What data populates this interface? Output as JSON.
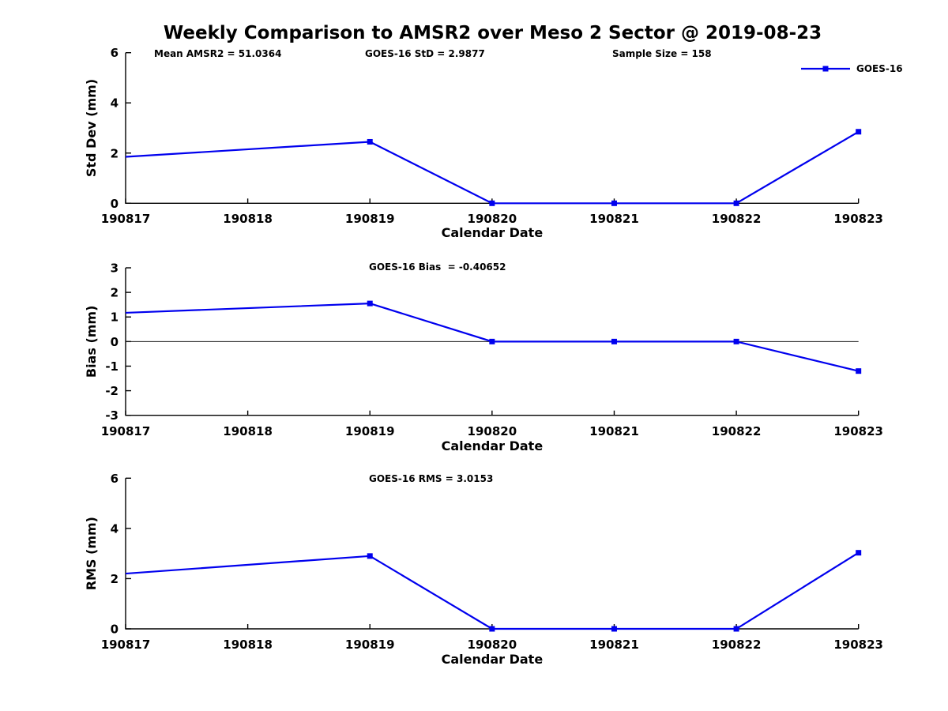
{
  "title": "Weekly Comparison to AMSR2 over Meso 2 Sector @ 2019-08-23",
  "header_annotations": {
    "mean_amsr2": "Mean AMSR2 = 51.0364",
    "goes16_std": "GOES-16 StD = 2.9877",
    "sample_size": "Sample Size = 158"
  },
  "legend": {
    "label": "GOES-16",
    "line_color": "#0000ee",
    "marker": "filled-square"
  },
  "colors": {
    "series_blue": "#0000ee",
    "axis_black": "#000000",
    "zero_line": "#1a1a1a"
  },
  "chart_data": [
    {
      "type": "line",
      "name": "std-dev-panel",
      "ylabel": "Std Dev (mm)",
      "xlabel": "Calendar Date",
      "ylim": [
        0,
        6
      ],
      "yticks": [
        0,
        2,
        4,
        6
      ],
      "categories": [
        "190817",
        "190818",
        "190819",
        "190820",
        "190821",
        "190822",
        "190823"
      ],
      "grid": false,
      "zero_line": false,
      "annotation": null,
      "legend_position": "top-right-outside",
      "series": [
        {
          "name": "GOES-16",
          "color": "#0000ee",
          "marker": "square",
          "points": [
            {
              "x": "190817",
              "y": 1.85,
              "marker": false
            },
            {
              "x": "190819",
              "y": 2.45,
              "marker": true
            },
            {
              "x": "190820",
              "y": 0.0,
              "marker": true
            },
            {
              "x": "190821",
              "y": 0.0,
              "marker": true
            },
            {
              "x": "190822",
              "y": 0.0,
              "marker": true
            },
            {
              "x": "190823",
              "y": 2.85,
              "marker": true
            }
          ]
        }
      ]
    },
    {
      "type": "line",
      "name": "bias-panel",
      "ylabel": "Bias (mm)",
      "xlabel": "Calendar Date",
      "ylim": [
        -3,
        3
      ],
      "yticks": [
        3,
        2,
        1,
        0,
        -1,
        -2,
        -3
      ],
      "categories": [
        "190817",
        "190818",
        "190819",
        "190820",
        "190821",
        "190822",
        "190823"
      ],
      "grid": false,
      "zero_line": true,
      "annotation": "GOES-16 Bias  = -0.40652",
      "series": [
        {
          "name": "GOES-16",
          "color": "#0000ee",
          "marker": "square",
          "points": [
            {
              "x": "190817",
              "y": 1.17,
              "marker": false
            },
            {
              "x": "190819",
              "y": 1.55,
              "marker": true
            },
            {
              "x": "190820",
              "y": 0.0,
              "marker": true
            },
            {
              "x": "190821",
              "y": 0.0,
              "marker": true
            },
            {
              "x": "190822",
              "y": 0.0,
              "marker": true
            },
            {
              "x": "190823",
              "y": -1.2,
              "marker": true
            }
          ]
        }
      ]
    },
    {
      "type": "line",
      "name": "rms-panel",
      "ylabel": "RMS (mm)",
      "xlabel": "Calendar Date",
      "ylim": [
        0,
        6
      ],
      "yticks": [
        0,
        2,
        4,
        6
      ],
      "categories": [
        "190817",
        "190818",
        "190819",
        "190820",
        "190821",
        "190822",
        "190823"
      ],
      "grid": false,
      "zero_line": false,
      "annotation": "GOES-16 RMS = 3.0153",
      "series": [
        {
          "name": "GOES-16",
          "color": "#0000ee",
          "marker": "square",
          "points": [
            {
              "x": "190817",
              "y": 2.2,
              "marker": false
            },
            {
              "x": "190819",
              "y": 2.9,
              "marker": true
            },
            {
              "x": "190820",
              "y": 0.0,
              "marker": true
            },
            {
              "x": "190821",
              "y": 0.0,
              "marker": true
            },
            {
              "x": "190822",
              "y": 0.0,
              "marker": true
            },
            {
              "x": "190823",
              "y": 3.03,
              "marker": true
            }
          ]
        }
      ]
    }
  ]
}
